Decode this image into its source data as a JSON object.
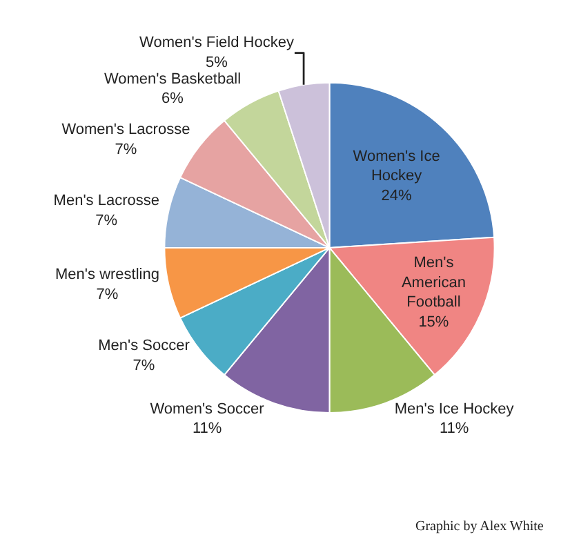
{
  "chart_data": {
    "type": "pie",
    "categories": [
      "Women's Ice Hockey",
      "Men's American Football",
      "Men's Ice Hockey",
      "Women's Soccer",
      "Men's Soccer",
      "Men's wrestling",
      "Men's Lacrosse",
      "Women's Lacrosse",
      "Women's Basketball",
      "Women's Field Hockey"
    ],
    "values": [
      24,
      15,
      11,
      11,
      7,
      7,
      7,
      7,
      6,
      5
    ],
    "value_labels": [
      "24%",
      "15%",
      "11%",
      "11%",
      "7%",
      "7%",
      "7%",
      "7%",
      "6%",
      "5%"
    ],
    "colors": [
      "#4f81bd",
      "#f08583",
      "#9bbb59",
      "#8064a2",
      "#4bacc6",
      "#f79646",
      "#95b3d7",
      "#e6a3a2",
      "#c3d69b",
      "#ccc1da"
    ],
    "annotations": [
      "Graphic by Alex White"
    ],
    "legend": false
  }
}
